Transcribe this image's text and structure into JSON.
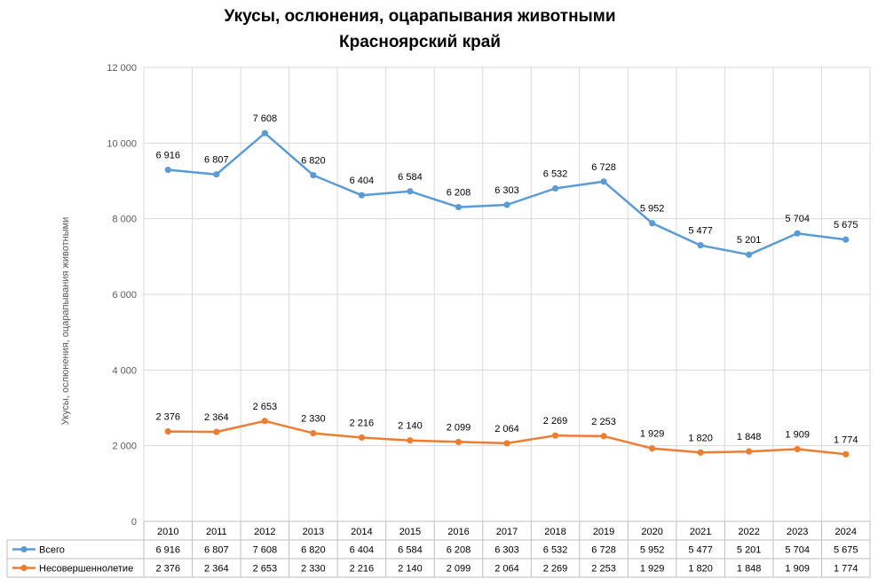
{
  "chart_data": {
    "type": "line",
    "title": "Укусы, ослюнения, оцарапывания животными",
    "subtitle": "Красноярский край",
    "ylabel": "Укусы, ослюнения, оцарапывания животными",
    "ylim": [
      0,
      12000
    ],
    "yticks": [
      0,
      2000,
      4000,
      6000,
      8000,
      10000,
      12000
    ],
    "ytick_labels": [
      "0",
      "2 000",
      "4 000",
      "6 000",
      "8 000",
      "10 000",
      "12 000"
    ],
    "grid": true,
    "legend": "data-table-left",
    "categories": [
      "2010",
      "2011",
      "2012",
      "2013",
      "2014",
      "2015",
      "2016",
      "2017",
      "2018",
      "2019",
      "2020",
      "2021",
      "2022",
      "2023",
      "2024"
    ],
    "series": [
      {
        "name": "Всего",
        "color": "#5B9BD5",
        "values": [
          9292,
          9171,
          10261,
          9150,
          8620,
          8724,
          8307,
          8367,
          8801,
          8981,
          7881,
          7297,
          7049,
          7613,
          7449
        ],
        "labels": [
          "6 916",
          "6 807",
          "7 608",
          "6 820",
          "6 404",
          "6 584",
          "6 208",
          "6 303",
          "6 532",
          "6 728",
          "5 952",
          "5 477",
          "5 201",
          "5 704",
          "5 675"
        ]
      },
      {
        "name": "Несовершеннолетие",
        "color": "#ED7D31",
        "values": [
          2376,
          2364,
          2653,
          2330,
          2216,
          2140,
          2099,
          2064,
          2269,
          2253,
          1929,
          1820,
          1848,
          1909,
          1774
        ],
        "labels": [
          "2 376",
          "2 364",
          "2 653",
          "2 330",
          "2 216",
          "2 140",
          "2 099",
          "2 064",
          "2 269",
          "2 253",
          "1 929",
          "1 820",
          "1 848",
          "1 909",
          "1 774"
        ]
      }
    ]
  }
}
